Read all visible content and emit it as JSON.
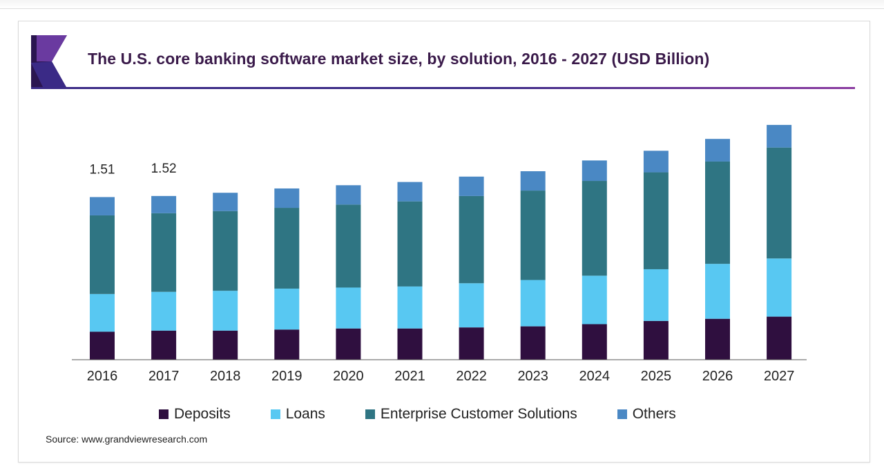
{
  "title": "The U.S. core banking software market size, by solution, 2016 - 2027 (USD Billion)",
  "source": "Source: www.grandviewresearch.com",
  "colors": {
    "title": "#3a1a4a",
    "deposits": "#2f0f3f",
    "loans": "#58c8f2",
    "enterprise": "#2f7583",
    "others": "#4a88c4",
    "logo_dark": "#2a1550",
    "logo_purple": "#6a3aa0"
  },
  "chart_data": {
    "type": "bar",
    "stacked": true,
    "categories": [
      "2016",
      "2017",
      "2018",
      "2019",
      "2020",
      "2021",
      "2022",
      "2023",
      "2024",
      "2025",
      "2026",
      "2027"
    ],
    "series": [
      {
        "name": "Deposits",
        "color": "#2f0f3f",
        "values": [
          0.26,
          0.27,
          0.27,
          0.28,
          0.29,
          0.29,
          0.3,
          0.31,
          0.33,
          0.36,
          0.38,
          0.4
        ]
      },
      {
        "name": "Loans",
        "color": "#58c8f2",
        "values": [
          0.35,
          0.36,
          0.37,
          0.38,
          0.38,
          0.39,
          0.41,
          0.43,
          0.45,
          0.48,
          0.51,
          0.54
        ]
      },
      {
        "name": "Enterprise Customer Solutions",
        "color": "#2f7583",
        "values": [
          0.73,
          0.73,
          0.74,
          0.75,
          0.77,
          0.79,
          0.81,
          0.83,
          0.88,
          0.9,
          0.95,
          1.03
        ]
      },
      {
        "name": "Others",
        "color": "#4a88c4",
        "values": [
          0.17,
          0.16,
          0.17,
          0.18,
          0.18,
          0.18,
          0.18,
          0.18,
          0.19,
          0.2,
          0.21,
          0.21
        ]
      }
    ],
    "data_labels": [
      "1.51",
      "1.52",
      "",
      "",
      "",
      "",
      "",
      "",
      "",
      "",
      "",
      ""
    ],
    "ylim": [
      0,
      2.25
    ],
    "grid": false,
    "legend_position": "bottom",
    "xlabel": "",
    "ylabel": ""
  }
}
